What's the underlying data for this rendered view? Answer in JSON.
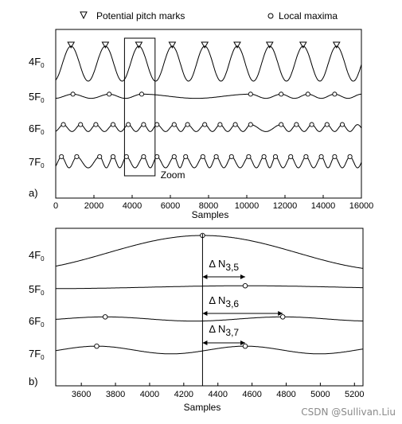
{
  "chart_data": [
    {
      "type": "line",
      "panel_label": "a)",
      "xlabel": "Samples",
      "xlim": [
        0,
        16000
      ],
      "x_ticks": [
        "0",
        "2000",
        "4000",
        "6000",
        "8000",
        "10000",
        "12000",
        "14000",
        "16000"
      ],
      "legend": {
        "placement": "top",
        "entries": [
          {
            "marker": "triangle-down",
            "label": "Potential pitch marks"
          },
          {
            "marker": "circle",
            "label": "Local maxima"
          }
        ]
      },
      "annotation": {
        "text": "Zoom",
        "x_range": [
          3600,
          5200
        ]
      },
      "series": [
        {
          "name": "4F",
          "name_sub": "0",
          "amplitude": 1.0,
          "peaks_x": [
            800,
            2600,
            4350,
            6100,
            7800,
            9500,
            11200,
            12950,
            14700
          ],
          "markers": "triangle-down"
        },
        {
          "name": "5F",
          "name_sub": "0",
          "amplitude": 0.12,
          "peaks_x": [
            900,
            2800,
            4500,
            10200,
            11800,
            13200,
            14600
          ],
          "markers": "circle"
        },
        {
          "name": "6F",
          "name_sub": "0",
          "amplitude": 0.2,
          "peaks_x": [
            400,
            1300,
            2100,
            3000,
            3800,
            4600,
            5300,
            6200,
            6900,
            7800,
            8600,
            9400,
            10200,
            11800,
            12600,
            13400,
            14200,
            15000
          ],
          "markers": "circle"
        },
        {
          "name": "7F",
          "name_sub": "0",
          "amplitude": 0.32,
          "peaks_x": [
            300,
            1100,
            2300,
            3000,
            3700,
            4600,
            5300,
            6200,
            6800,
            7700,
            8400,
            9200,
            10100,
            10900,
            11500,
            12300,
            13100,
            13900,
            14600,
            15400
          ],
          "markers": "circle"
        }
      ]
    },
    {
      "type": "line",
      "panel_label": "b)",
      "xlabel": "Samples",
      "xlim": [
        3450,
        5250
      ],
      "x_ticks": [
        "3600",
        "3800",
        "4000",
        "4200",
        "4400",
        "4600",
        "4800",
        "5000",
        "5200"
      ],
      "reference_x": 4310,
      "series": [
        {
          "name": "4F",
          "name_sub": "0",
          "amplitude": 1.0,
          "peaks_x": [
            4310
          ]
        },
        {
          "name": "5F",
          "name_sub": "0",
          "amplitude": 0.08,
          "peaks_x": [
            4560
          ]
        },
        {
          "name": "6F",
          "name_sub": "0",
          "amplitude": 0.12,
          "peaks_x": [
            3740,
            4780
          ]
        },
        {
          "name": "7F",
          "name_sub": "0",
          "amplitude": 0.22,
          "peaks_x": [
            3690,
            4560
          ]
        }
      ],
      "deltas": [
        {
          "label": "Δ N",
          "sub": "3,5",
          "to_x": 4560
        },
        {
          "label": "Δ N",
          "sub": "3,6",
          "to_x": 4780
        },
        {
          "label": "Δ N",
          "sub": "3,7",
          "to_x": 4560
        }
      ]
    }
  ],
  "watermark": "CSDN @Sullivan.Liu"
}
